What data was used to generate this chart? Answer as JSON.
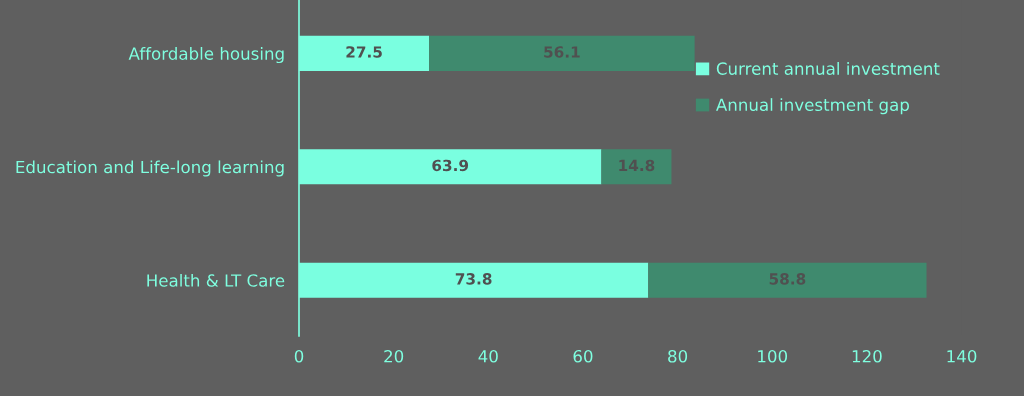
{
  "chart_data": {
    "type": "bar",
    "orientation": "horizontal",
    "stacked": true,
    "categories": [
      "Affordable housing",
      "Education and Life-long learning",
      "Health & LT Care"
    ],
    "series": [
      {
        "name": "Current annual investment",
        "color": "#7affe0",
        "values": [
          27.5,
          63.9,
          73.8
        ]
      },
      {
        "name": "Annual investment gap",
        "color": "#3f8a6e",
        "values": [
          56.1,
          14.8,
          58.8
        ]
      }
    ],
    "xlim": [
      0,
      140
    ],
    "xticks": [
      0,
      20,
      40,
      60,
      80,
      100,
      120,
      140
    ],
    "data_labels": true,
    "legend": "top right",
    "grid": false
  }
}
